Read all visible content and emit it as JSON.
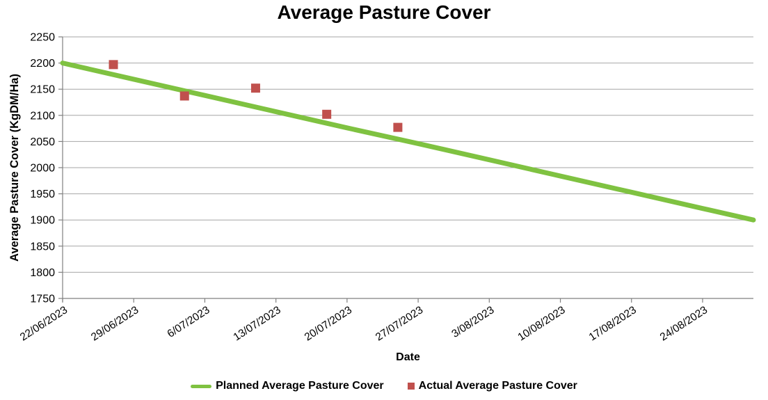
{
  "chart_data": {
    "type": "line",
    "title": "Average Pasture Cover",
    "xlabel": "Date",
    "ylabel": "Average Pasture Cover (KgDM/Ha)",
    "ylim": [
      1750,
      2250
    ],
    "yticks": [
      2250,
      2200,
      2150,
      2100,
      2050,
      2000,
      1950,
      1900,
      1850,
      1800,
      1750
    ],
    "x_tick_labels": [
      "22/06/2023",
      "29/06/2023",
      "6/07/2023",
      "13/07/2023",
      "20/07/2023",
      "27/07/2023",
      "3/08/2023",
      "10/08/2023",
      "17/08/2023",
      "24/08/2023"
    ],
    "x_tick_interval_days": 7,
    "x_axis_span_days": 68,
    "grid": "horizontal",
    "legend_position": "bottom",
    "colors": {
      "grid": "#A6A6A6",
      "axis": "#808080",
      "background": "#FFFFFF",
      "planned_line": "#7FC241",
      "actual_marker": "#C0504D"
    },
    "series": [
      {
        "name": "Planned Average Pasture Cover",
        "type": "line",
        "color": "#7FC241",
        "points": [
          {
            "day": 0,
            "date": "22/06/2023",
            "value": 2200
          },
          {
            "day": 7,
            "date": "29/06/2023",
            "value": 2169
          },
          {
            "day": 14,
            "date": "6/07/2023",
            "value": 2138
          },
          {
            "day": 21,
            "date": "13/07/2023",
            "value": 2107
          },
          {
            "day": 28,
            "date": "20/07/2023",
            "value": 2076
          },
          {
            "day": 35,
            "date": "27/07/2023",
            "value": 2046
          },
          {
            "day": 42,
            "date": "3/08/2023",
            "value": 2015
          },
          {
            "day": 49,
            "date": "10/08/2023",
            "value": 1984
          },
          {
            "day": 56,
            "date": "17/08/2023",
            "value": 1953
          },
          {
            "day": 63,
            "date": "24/08/2023",
            "value": 1922
          },
          {
            "day": 68,
            "date": "29/08/2023",
            "value": 1900
          }
        ]
      },
      {
        "name": "Actual Average Pasture Cover",
        "type": "scatter",
        "marker": "square",
        "color": "#C0504D",
        "points": [
          {
            "day": 5,
            "date": "27/06/2023",
            "value": 2197
          },
          {
            "day": 12,
            "date": "4/07/2023",
            "value": 2137
          },
          {
            "day": 19,
            "date": "11/07/2023",
            "value": 2152
          },
          {
            "day": 26,
            "date": "18/07/2023",
            "value": 2102
          },
          {
            "day": 33,
            "date": "25/07/2023",
            "value": 2077
          }
        ]
      }
    ]
  }
}
